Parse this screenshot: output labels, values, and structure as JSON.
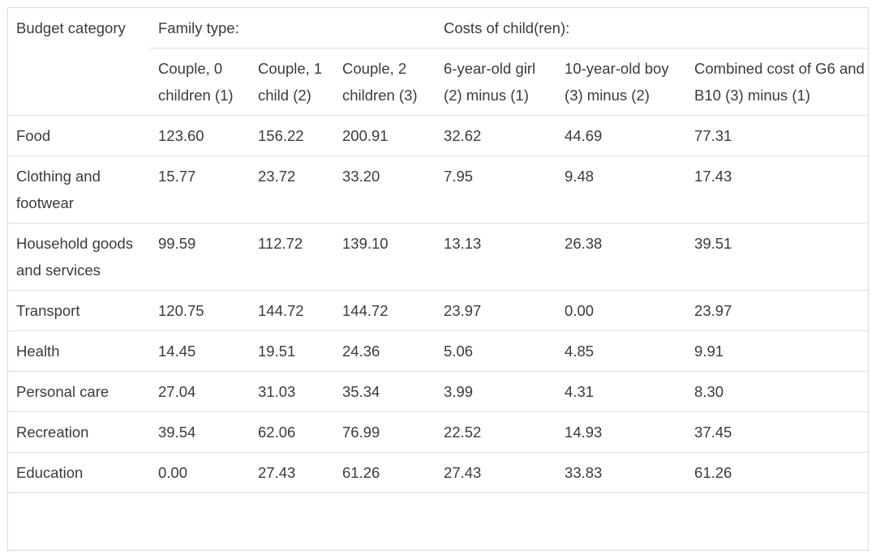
{
  "header": {
    "category_label": "Budget category",
    "family_type_label": "Family type:",
    "costs_label": "Costs of child(ren):",
    "columns": [
      "Couple, 0 children (1)",
      "Couple, 1 child (2)",
      "Couple, 2 children (3)",
      "6-year-old girl (2) minus (1)",
      "10-year-old boy (3) minus (2)",
      "Combined cost of G6 and B10 (3) minus (1)"
    ]
  },
  "rows": [
    {
      "category": "Food",
      "values": [
        "123.60",
        "156.22",
        "200.91",
        "32.62",
        "44.69",
        "77.31"
      ]
    },
    {
      "category": "Clothing and footwear",
      "values": [
        "15.77",
        "23.72",
        "33.20",
        "7.95",
        "9.48",
        "17.43"
      ]
    },
    {
      "category": "Household goods and services",
      "values": [
        "99.59",
        "112.72",
        "139.10",
        "13.13",
        "26.38",
        "39.51"
      ]
    },
    {
      "category": "Transport",
      "values": [
        "120.75",
        "144.72",
        "144.72",
        "23.97",
        "0.00",
        "23.97"
      ]
    },
    {
      "category": "Health",
      "values": [
        "14.45",
        "19.51",
        "24.36",
        "5.06",
        "4.85",
        "9.91"
      ]
    },
    {
      "category": "Personal care",
      "values": [
        "27.04",
        "31.03",
        "35.34",
        "3.99",
        "4.31",
        "8.30"
      ]
    },
    {
      "category": "Recreation",
      "values": [
        "39.54",
        "62.06",
        "76.99",
        "22.52",
        "14.93",
        "37.45"
      ]
    },
    {
      "category": "Education",
      "values": [
        "0.00",
        "27.43",
        "61.26",
        "27.43",
        "33.83",
        "61.26"
      ]
    }
  ]
}
